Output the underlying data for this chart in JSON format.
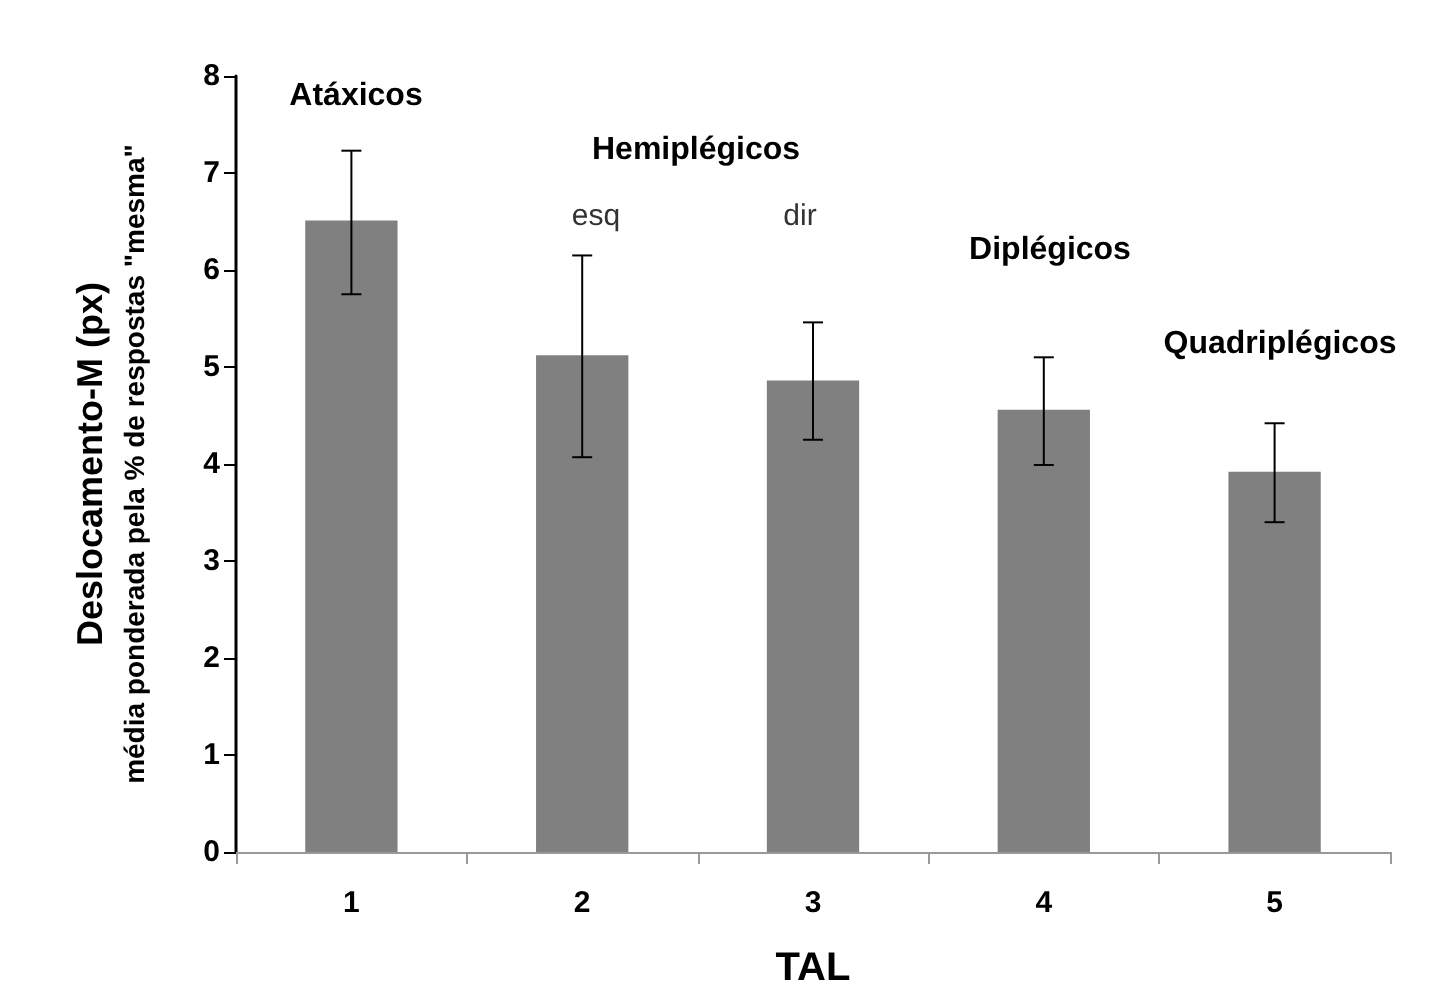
{
  "chart_data": {
    "type": "bar",
    "xlabel": "TAL",
    "ylabel": "Deslocamento-M (px)\nmédia ponderada pela % de respostas \"mesma\"",
    "categories": [
      "1",
      "2",
      "3",
      "4",
      "5"
    ],
    "values": [
      6.51,
      5.12,
      4.86,
      4.56,
      3.92
    ],
    "color": "#808080",
    "errors": [
      [
        5.75,
        7.23
      ],
      [
        4.07,
        6.15
      ],
      [
        4.25,
        5.46
      ],
      [
        3.99,
        5.1
      ],
      [
        3.4,
        4.42
      ]
    ],
    "ylim": [
      0,
      8
    ],
    "yticks": [
      0,
      1,
      2,
      3,
      4,
      5,
      6,
      7,
      8
    ],
    "grid": false,
    "annotations": [
      "Atáxicos",
      "Hemiplégicos",
      "esq",
      "dir",
      "Diplégicos",
      "Quadriplégicos"
    ]
  }
}
